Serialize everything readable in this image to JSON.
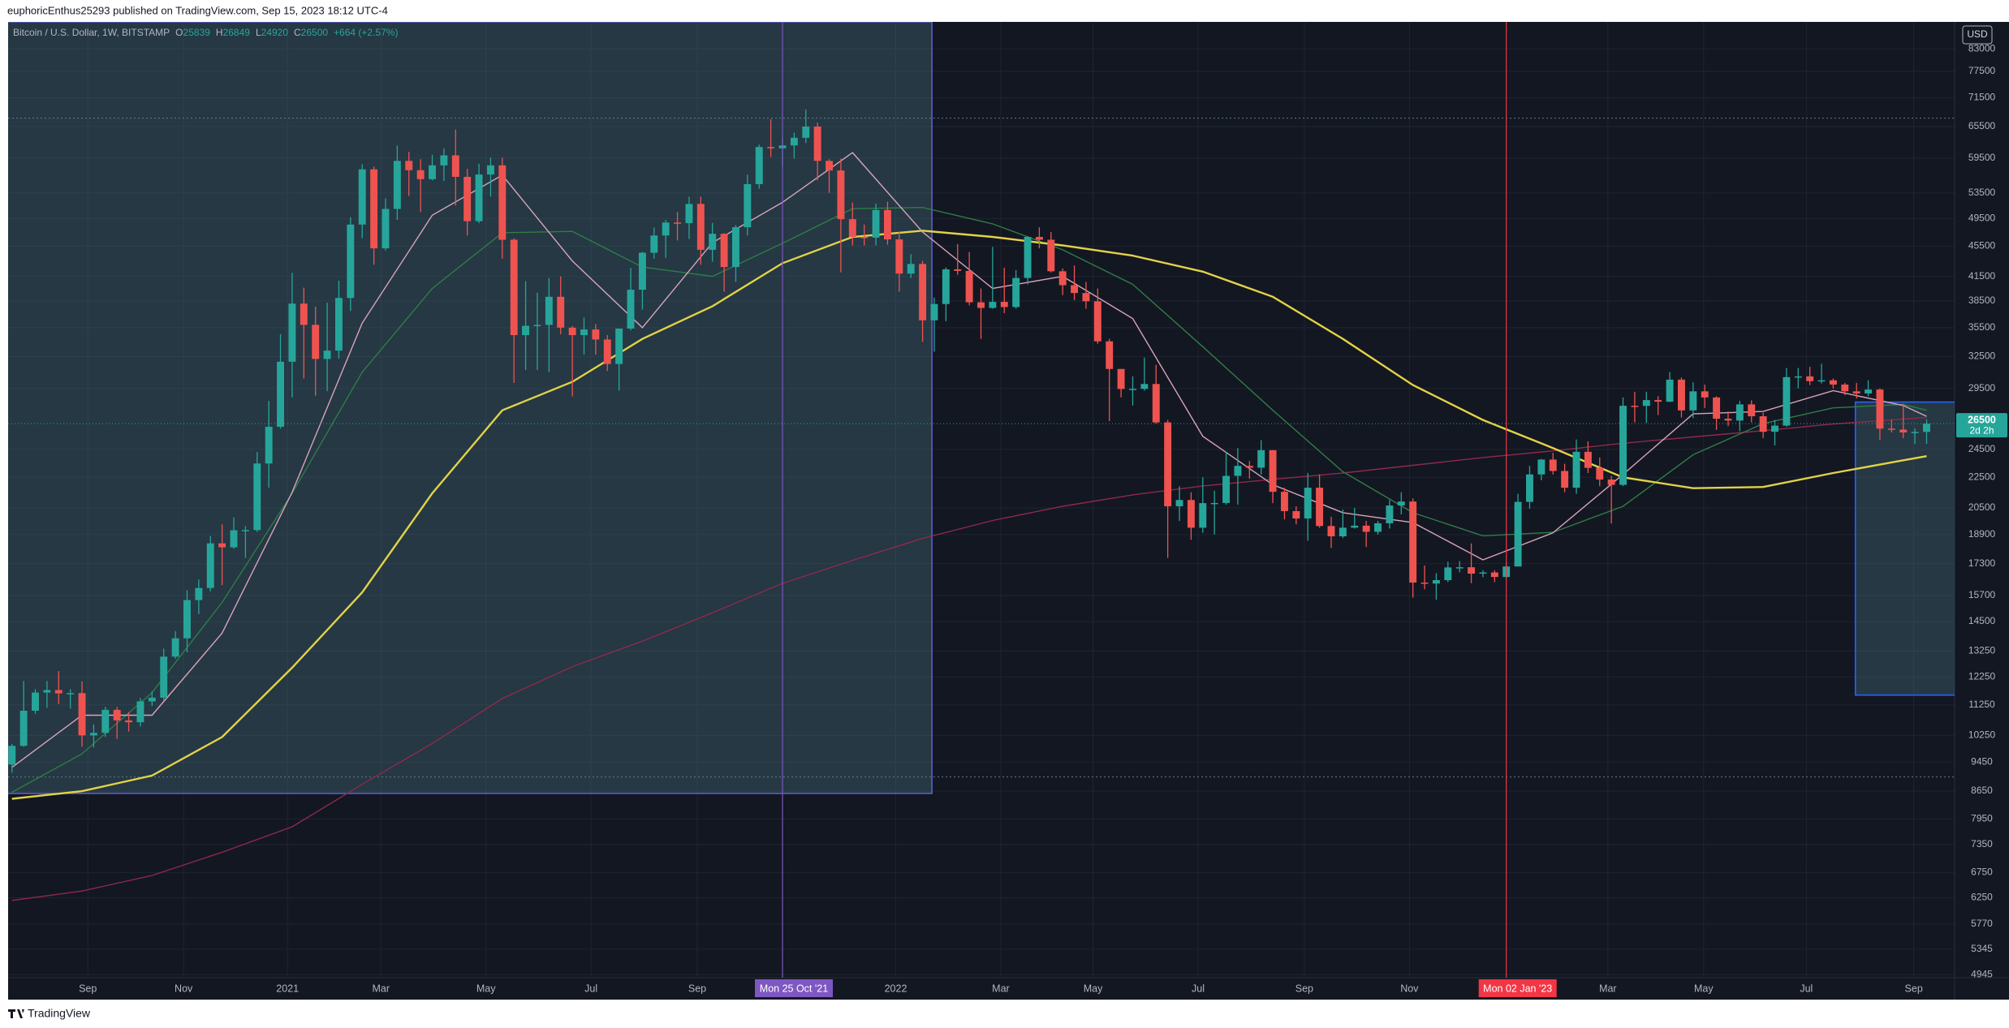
{
  "header": {
    "text": "euphoricEnthus25293 published on TradingView.com, Sep 15, 2023 18:12 UTC-4"
  },
  "footer": {
    "logo": "TradingView"
  },
  "chart_data": {
    "type": "candlestick",
    "title": "Bitcoin / U.S. Dollar, 1W, BITSTAMP",
    "ohlc_labels": [
      "O",
      "H",
      "L",
      "C"
    ],
    "change": "+664 (+2.57%)",
    "currency": "USD",
    "countdown": "2d 2h",
    "up_color": "#26a69a",
    "down_color": "#ef5350",
    "log_scale": true,
    "grid": true,
    "open": [
      9380,
      9930,
      11050,
      11680,
      11770,
      11650,
      11660,
      10250,
      10330,
      11080,
      10730,
      10670,
      11370,
      11500,
      13030,
      13780,
      15480,
      16060,
      18400,
      18180,
      19150,
      19160,
      23470,
      26250,
      32000,
      38200,
      35800,
      32270,
      33100,
      38860,
      48600,
      57500,
      45200,
      50970,
      59000,
      57350,
      55800,
      58200,
      60000,
      56200,
      49100,
      56600,
      58200,
      46400,
      34700,
      35700,
      35800,
      39000,
      35500,
      34700,
      35300,
      34240,
      31780,
      35400,
      39850,
      44600,
      47000,
      48900,
      48800,
      51750,
      45000,
      47250,
      42700,
      48200,
      54970,
      61550,
      61300,
      61850,
      63300,
      65500,
      59000,
      57300,
      49400,
      46800,
      46700,
      50800,
      46450,
      41850,
      43100,
      36300,
      38150,
      42400,
      42200,
      38350,
      37700,
      38400,
      37800,
      41300,
      46800,
      46400,
      42150,
      40400,
      39450,
      38470,
      34050,
      31300,
      29450,
      29460,
      29900,
      26600,
      20600,
      21000,
      19300,
      20800,
      20810,
      22600,
      23300,
      23170,
      24440,
      21530,
      20300,
      19850,
      21800,
      19400,
      18800,
      19300,
      19420,
      19060,
      19560,
      20650,
      20900,
      16330,
      16280,
      16450,
      17100,
      17110,
      16780,
      16840,
      16610,
      17150,
      20880,
      22700,
      23750,
      22940,
      21800,
      24320,
      23160,
      22350,
      21990,
      27980,
      27970,
      28470,
      28330,
      30300,
      27590,
      29240,
      28700,
      26900,
      26750,
      28100,
      27100,
      25850,
      26340,
      30530,
      30600,
      30160,
      30240,
      29850,
      29240,
      29050,
      29400,
      26100,
      26020,
      25800,
      25839
    ],
    "high": [
      9990,
      12100,
      11800,
      12100,
      12470,
      11800,
      12080,
      10600,
      11180,
      11180,
      11000,
      11490,
      11720,
      13350,
      14080,
      15960,
      16480,
      18820,
      19500,
      19920,
      19400,
      24300,
      28400,
      34800,
      41950,
      40100,
      37850,
      38300,
      40950,
      49700,
      58400,
      58000,
      52650,
      61800,
      60650,
      59300,
      60100,
      61300,
      64900,
      57600,
      58500,
      59600,
      59600,
      46600,
      40900,
      39500,
      41300,
      41500,
      35700,
      36600,
      35900,
      34700,
      35400,
      42600,
      44700,
      48150,
      49300,
      50500,
      52900,
      52900,
      48850,
      47350,
      48500,
      56600,
      62000,
      67000,
      63300,
      64300,
      69000,
      66300,
      59300,
      59400,
      51950,
      48600,
      51800,
      52100,
      47500,
      44400,
      43500,
      38900,
      42650,
      45800,
      44700,
      40000,
      45400,
      42600,
      42300,
      46900,
      48200,
      47500,
      42500,
      42900,
      40800,
      40000,
      34300,
      31300,
      30600,
      32400,
      31700,
      26800,
      21900,
      21500,
      22500,
      21600,
      24300,
      24600,
      23650,
      25200,
      24450,
      21800,
      20600,
      22800,
      22700,
      19950,
      20400,
      20500,
      19700,
      19700,
      21000,
      21500,
      21100,
      17200,
      16800,
      17400,
      17430,
      18400,
      16950,
      16950,
      17400,
      21400,
      23300,
      23800,
      24250,
      23450,
      25250,
      25100,
      23900,
      22600,
      28700,
      29200,
      29200,
      28800,
      31000,
      30500,
      30050,
      29840,
      28800,
      27500,
      28400,
      28450,
      27400,
      26800,
      31400,
      31400,
      31500,
      31800,
      30400,
      30000,
      30000,
      30250,
      29500,
      26800,
      28150,
      26120,
      26849
    ],
    "low": [
      9150,
      9900,
      10950,
      11150,
      11280,
      11120,
      9900,
      9880,
      10200,
      10140,
      10370,
      10530,
      11210,
      11410,
      12950,
      13200,
      14830,
      15900,
      16200,
      18100,
      17600,
      19050,
      21800,
      26100,
      28700,
      30400,
      28850,
      29250,
      32300,
      37350,
      46600,
      43000,
      44900,
      49300,
      53000,
      50500,
      55600,
      55500,
      51500,
      47000,
      48800,
      52900,
      43800,
      30000,
      31200,
      31200,
      31000,
      34800,
      28800,
      32700,
      32700,
      31100,
      29300,
      35200,
      37500,
      43800,
      43900,
      46300,
      46500,
      43000,
      43400,
      39600,
      40800,
      47000,
      54200,
      59700,
      58000,
      59400,
      62300,
      55600,
      53500,
      42000,
      45600,
      45600,
      45600,
      45700,
      39600,
      41300,
      34000,
      33000,
      36200,
      41700,
      38000,
      34300,
      37600,
      37100,
      37600,
      40500,
      45200,
      42000,
      39200,
      38600,
      37600,
      33800,
      26700,
      28700,
      28000,
      29300,
      26500,
      17600,
      19700,
      18600,
      19000,
      18900,
      20700,
      20700,
      22400,
      22700,
      20800,
      19800,
      19500,
      18550,
      19300,
      18150,
      18700,
      19250,
      18200,
      18900,
      19250,
      20100,
      15600,
      16000,
      15500,
      16350,
      16850,
      16300,
      16600,
      16350,
      16550,
      17150,
      20450,
      22300,
      22700,
      21500,
      21400,
      22800,
      21900,
      19550,
      21900,
      26600,
      26550,
      27200,
      28300,
      27000,
      26950,
      27800,
      26000,
      26300,
      25900,
      26600,
      25350,
      24800,
      26250,
      29500,
      29800,
      29950,
      29500,
      28900,
      28600,
      28800,
      25200,
      25800,
      25350,
      24900,
      24920
    ],
    "close": [
      9930,
      11050,
      11680,
      11770,
      11650,
      11660,
      10250,
      10330,
      11080,
      10730,
      10670,
      11370,
      11500,
      13030,
      13780,
      15480,
      16060,
      18400,
      18180,
      19150,
      19160,
      23470,
      26250,
      32000,
      38200,
      35800,
      32270,
      33100,
      38860,
      48600,
      57500,
      45200,
      50970,
      59000,
      57350,
      55800,
      58200,
      60000,
      56200,
      49100,
      56600,
      58200,
      46400,
      34700,
      35700,
      35800,
      39000,
      35500,
      34700,
      35300,
      34240,
      31780,
      35400,
      39850,
      44600,
      47000,
      48900,
      48800,
      51750,
      45000,
      47250,
      42700,
      48200,
      54970,
      61550,
      61300,
      61850,
      63300,
      65500,
      59000,
      57300,
      49400,
      46800,
      46700,
      50800,
      46450,
      41850,
      43100,
      36300,
      38150,
      42400,
      42200,
      38350,
      37700,
      38400,
      37800,
      41300,
      46800,
      46400,
      42150,
      40400,
      39450,
      38470,
      34050,
      31300,
      29450,
      29460,
      29900,
      26600,
      20600,
      21000,
      19300,
      20800,
      20810,
      22600,
      23300,
      23170,
      24440,
      21530,
      20300,
      19850,
      21800,
      19400,
      18800,
      19300,
      19420,
      19060,
      19560,
      20650,
      20900,
      16330,
      16280,
      16450,
      17100,
      17110,
      16780,
      16840,
      16610,
      17150,
      20880,
      22700,
      23750,
      22940,
      21800,
      24320,
      23160,
      22350,
      21990,
      27980,
      27970,
      28470,
      28330,
      30300,
      27590,
      29240,
      28700,
      26900,
      26750,
      28100,
      27100,
      25850,
      26340,
      30530,
      30600,
      30160,
      30240,
      29850,
      29240,
      29050,
      29400,
      26100,
      26020,
      25800,
      25836,
      26500
    ],
    "series": [
      {
        "color": "#8e2a4a",
        "x": [
          0,
          6,
          12,
          18,
          24,
          30,
          36,
          42,
          48,
          54,
          60,
          66,
          72,
          78,
          84,
          90,
          96,
          102,
          108,
          114,
          120,
          126,
          132,
          138,
          144,
          150,
          156,
          162,
          164
        ],
        "values": [
          6200,
          6380,
          6690,
          7180,
          7760,
          8830,
          10000,
          11470,
          12640,
          13660,
          14890,
          16290,
          17470,
          18680,
          19730,
          20600,
          21330,
          21920,
          22360,
          22800,
          23340,
          23900,
          24390,
          24960,
          25450,
          25940,
          26470,
          26870,
          27000
        ]
      },
      {
        "color": "#2f7d45",
        "x": [
          0,
          6,
          12,
          18,
          24,
          30,
          36,
          42,
          48,
          54,
          60,
          66,
          72,
          78,
          84,
          90,
          96,
          102,
          108,
          114,
          120,
          126,
          132,
          138,
          144,
          150,
          156,
          162,
          164
        ],
        "values": [
          8620,
          9690,
          11680,
          15370,
          21430,
          31000,
          40000,
          47400,
          47600,
          42700,
          41500,
          45900,
          51000,
          51200,
          48700,
          45000,
          40500,
          33500,
          27600,
          22890,
          20200,
          18830,
          19030,
          20600,
          24100,
          26500,
          27800,
          28100,
          27600
        ]
      },
      {
        "color": "#e2d247",
        "x": [
          0,
          6,
          12,
          18,
          24,
          30,
          36,
          42,
          48,
          54,
          60,
          66,
          72,
          78,
          84,
          90,
          96,
          102,
          108,
          114,
          120,
          126,
          132,
          138,
          144,
          150,
          156,
          162,
          164
        ],
        "values": [
          8450,
          8650,
          9070,
          10200,
          12600,
          15850,
          21430,
          27600,
          30100,
          34300,
          37900,
          43200,
          46800,
          47700,
          46800,
          45600,
          44200,
          42100,
          39000,
          34300,
          29800,
          26800,
          24600,
          22500,
          21770,
          21850,
          22800,
          23700,
          24000
        ]
      },
      {
        "color": "#d9a3b8",
        "x": [
          0,
          6,
          12,
          18,
          24,
          30,
          36,
          42,
          48,
          54,
          60,
          66,
          72,
          78,
          84,
          90,
          96,
          102,
          108,
          114,
          120,
          126,
          132,
          138,
          144,
          150,
          156,
          162,
          164
        ],
        "values": [
          9300,
          10900,
          10900,
          14000,
          21500,
          36000,
          50000,
          56500,
          43500,
          35500,
          46000,
          52000,
          60500,
          47500,
          40000,
          41500,
          36500,
          25500,
          22000,
          20200,
          19600,
          17500,
          19000,
          22700,
          27300,
          27500,
          29300,
          28000,
          27100
        ]
      }
    ],
    "ylim": [
      4900,
      90100
    ],
    "yticks": [
      83000,
      77500,
      71500,
      65500,
      59500,
      53500,
      49500,
      45500,
      41500,
      38500,
      35500,
      32500,
      29500,
      24500,
      22500,
      20500,
      18900,
      17300,
      15700,
      14500,
      13250,
      12250,
      11250,
      10250,
      9450,
      8650,
      7950,
      7350,
      6750,
      6250,
      5770,
      5345,
      4945
    ],
    "xlim": [
      -0.33,
      166.4
    ],
    "xticks": [
      {
        "value": 6.5,
        "label": "Sep"
      },
      {
        "value": 14.7,
        "label": "Nov"
      },
      {
        "value": 23.6,
        "label": "2021"
      },
      {
        "value": 31.6,
        "label": "Mar"
      },
      {
        "value": 40.6,
        "label": "May"
      },
      {
        "value": 49.6,
        "label": "Jul"
      },
      {
        "value": 58.7,
        "label": "Sep"
      },
      {
        "value": 75.7,
        "label": "2022"
      },
      {
        "value": 84.7,
        "label": "Mar"
      },
      {
        "value": 92.6,
        "label": "May"
      },
      {
        "value": 101.6,
        "label": "Jul"
      },
      {
        "value": 110.7,
        "label": "Sep"
      },
      {
        "value": 119.7,
        "label": "Nov"
      },
      {
        "value": 136.7,
        "label": "Mar"
      },
      {
        "value": 144.9,
        "label": "May"
      },
      {
        "value": 153.7,
        "label": "Jul"
      },
      {
        "value": 162.9,
        "label": "Sep"
      }
    ],
    "vlines": [
      {
        "x": 66,
        "label": "Mon 25 Oct '21",
        "color": "#7e57c2"
      },
      {
        "x": 128,
        "label": "Mon 02 Jan '23",
        "color": "#f23645"
      }
    ],
    "hlines": [
      67200,
      9030
    ],
    "rectangles": [
      {
        "x": [
          -1,
          78.8
        ],
        "y": [
          8590,
          90100
        ],
        "fill": "#4f7f8c",
        "stroke": "#5b5fc7"
      },
      {
        "x": [
          157.9,
          167
        ],
        "y": [
          11590,
          28300
        ],
        "fill": "#4f7f8c",
        "stroke": "#2962ff"
      }
    ]
  }
}
